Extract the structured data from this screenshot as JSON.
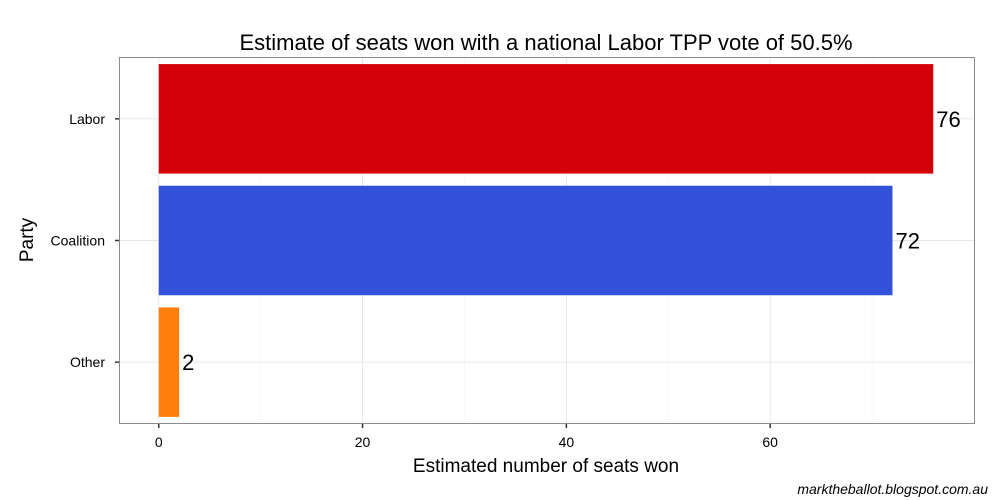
{
  "chart_data": {
    "type": "bar",
    "orientation": "horizontal",
    "title": "Estimate of seats won with a national Labor TPP vote of 50.5%",
    "xlabel": "Estimated number of seats won",
    "ylabel": "Party",
    "categories": [
      "Labor",
      "Coalition",
      "Other"
    ],
    "values": [
      76,
      72,
      2
    ],
    "data_labels": [
      "76",
      "72",
      "2"
    ],
    "colors": [
      "#d40009",
      "#3452d9",
      "#ff7f0e"
    ],
    "xlim": [
      -3.8,
      80
    ],
    "x_ticks": [
      0,
      20,
      40,
      60
    ],
    "grid": true,
    "legend": "none"
  },
  "caption": "marktheballot.blogspot.com.au"
}
